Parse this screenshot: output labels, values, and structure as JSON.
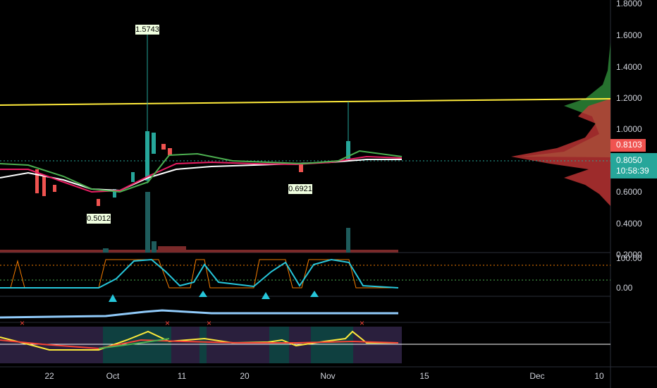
{
  "price_axis": {
    "labels": [
      "1.8000",
      "1.6000",
      "1.4000",
      "1.2000",
      "1.0000",
      "0.6000",
      "0.4000",
      "0.2000"
    ]
  },
  "price_tags": {
    "last": "0.8103",
    "current": "0.8050",
    "countdown": "10:58:39"
  },
  "annotations": {
    "high": "1.5743",
    "low": "0.5012",
    "swing_low": "0.6921"
  },
  "oscillator_axis": {
    "labels": [
      "100.00",
      "0.00"
    ]
  },
  "time_axis": {
    "labels": [
      "22",
      "Oct",
      "11",
      "20",
      "Nov",
      "15",
      "Dec",
      "10"
    ]
  }
}
